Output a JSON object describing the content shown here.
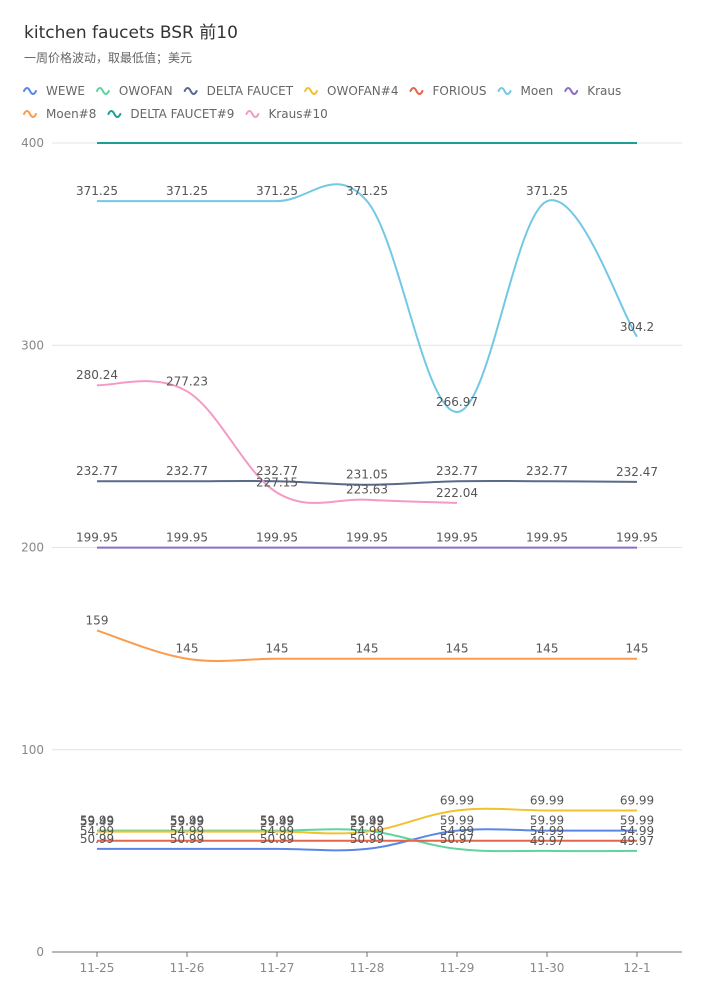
{
  "chart_data": {
    "type": "line",
    "title": "kitchen faucets BSR 前10",
    "subtitle": "一周价格波动，取最低值；美元",
    "categories": [
      "11-25",
      "11-26",
      "11-27",
      "11-28",
      "11-29",
      "11-30",
      "12-1"
    ],
    "ylim": [
      0,
      400
    ],
    "yticks": [
      0,
      100,
      200,
      300,
      400
    ],
    "grid": true,
    "smooth": true,
    "series": [
      {
        "name": "WEWE",
        "color": "#5b86e5",
        "values": [
          50.99,
          50.99,
          50.99,
          50.99,
          59.99,
          59.99,
          59.99
        ]
      },
      {
        "name": "OWOFAN",
        "color": "#5fd3a0",
        "values": [
          59.99,
          59.99,
          59.99,
          59.99,
          50.97,
          49.97,
          49.97
        ]
      },
      {
        "name": "DELTA FAUCET",
        "color": "#5a6a8a",
        "values": [
          232.77,
          232.77,
          232.77,
          231.05,
          232.77,
          232.77,
          232.47
        ]
      },
      {
        "name": "OWOFAN#4",
        "color": "#f2c12e",
        "values": [
          59.49,
          59.49,
          59.49,
          59.49,
          69.99,
          69.99,
          69.99
        ]
      },
      {
        "name": "FORIOUS",
        "color": "#e5654a",
        "values": [
          54.99,
          54.99,
          54.99,
          54.99,
          54.99,
          54.99,
          54.99
        ]
      },
      {
        "name": "Moen",
        "color": "#73c8e6",
        "values": [
          371.25,
          371.25,
          371.25,
          371.25,
          266.97,
          371.25,
          304.2
        ]
      },
      {
        "name": "Kraus",
        "color": "#8d6cc9",
        "values": [
          199.95,
          199.95,
          199.95,
          199.95,
          199.95,
          199.95,
          199.95
        ]
      },
      {
        "name": "Moen#8",
        "color": "#fb9b4b",
        "values": [
          159,
          145,
          145,
          145,
          145,
          145,
          145
        ]
      },
      {
        "name": "DELTA FAUCET#9",
        "color": "#1e9e99",
        "values": [
          400,
          400,
          400,
          400,
          400,
          400,
          400
        ],
        "labels": false
      },
      {
        "name": "Kraus#10",
        "color": "#f39ac6",
        "values": [
          280.24,
          277.23,
          227.15,
          223.63,
          222.04,
          null,
          null
        ]
      }
    ]
  }
}
